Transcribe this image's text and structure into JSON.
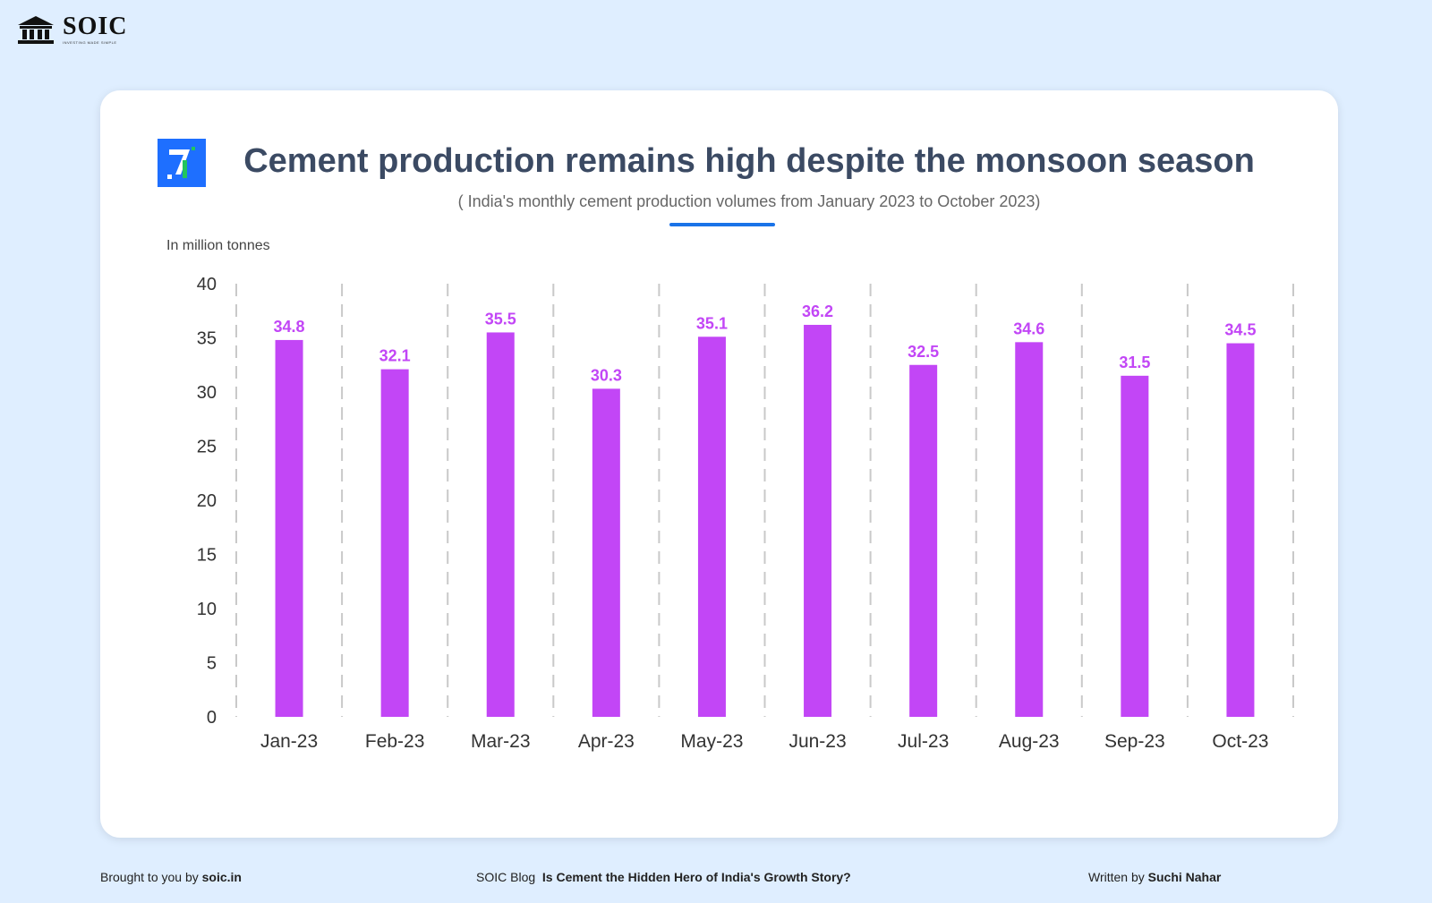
{
  "brand": {
    "name": "SOIC",
    "tagline": "INVESTING MADE SIMPLE"
  },
  "colors": {
    "background": "#dfeeff",
    "bar": "#c246f6",
    "label": "#c246f6",
    "title": "#3b4a63",
    "accent": "#1a73e8",
    "logo_blue": "#1e6fff",
    "logo_green": "#22c55e"
  },
  "icons": {
    "brand_logo": "bank-building-icon",
    "card_logo": "seven-logo-icon"
  },
  "chart_data": {
    "type": "bar",
    "title": "Cement production remains high despite the monsoon season",
    "subtitle": "( India's monthly cement production volumes from January 2023 to October 2023)",
    "ylabel": "In million tonnes",
    "xlabel": "",
    "ylim": [
      0,
      40
    ],
    "yticks": [
      "0",
      "5",
      "10",
      "15",
      "20",
      "25",
      "30",
      "35",
      "40"
    ],
    "grid": "vertical dashed",
    "categories": [
      "Jan-23",
      "Feb-23",
      "Mar-23",
      "Apr-23",
      "May-23",
      "Jun-23",
      "Jul-23",
      "Aug-23",
      "Sep-23",
      "Oct-23"
    ],
    "values": [
      34.8,
      32.1,
      35.5,
      30.3,
      35.1,
      36.2,
      32.5,
      34.6,
      31.5,
      34.5
    ],
    "data_labels": [
      "34.8",
      "32.1",
      "35.5",
      "30.3",
      "35.1",
      "36.2",
      "32.5",
      "34.6",
      "31.5",
      "34.5"
    ]
  },
  "footer": {
    "left_prefix": "Brought to you by",
    "left_link": "soic.in",
    "center_prefix": "SOIC Blog",
    "center_title": "Is Cement the Hidden Hero of India's Growth Story?",
    "right_prefix": "Written by",
    "right_author": "Suchi Nahar"
  }
}
